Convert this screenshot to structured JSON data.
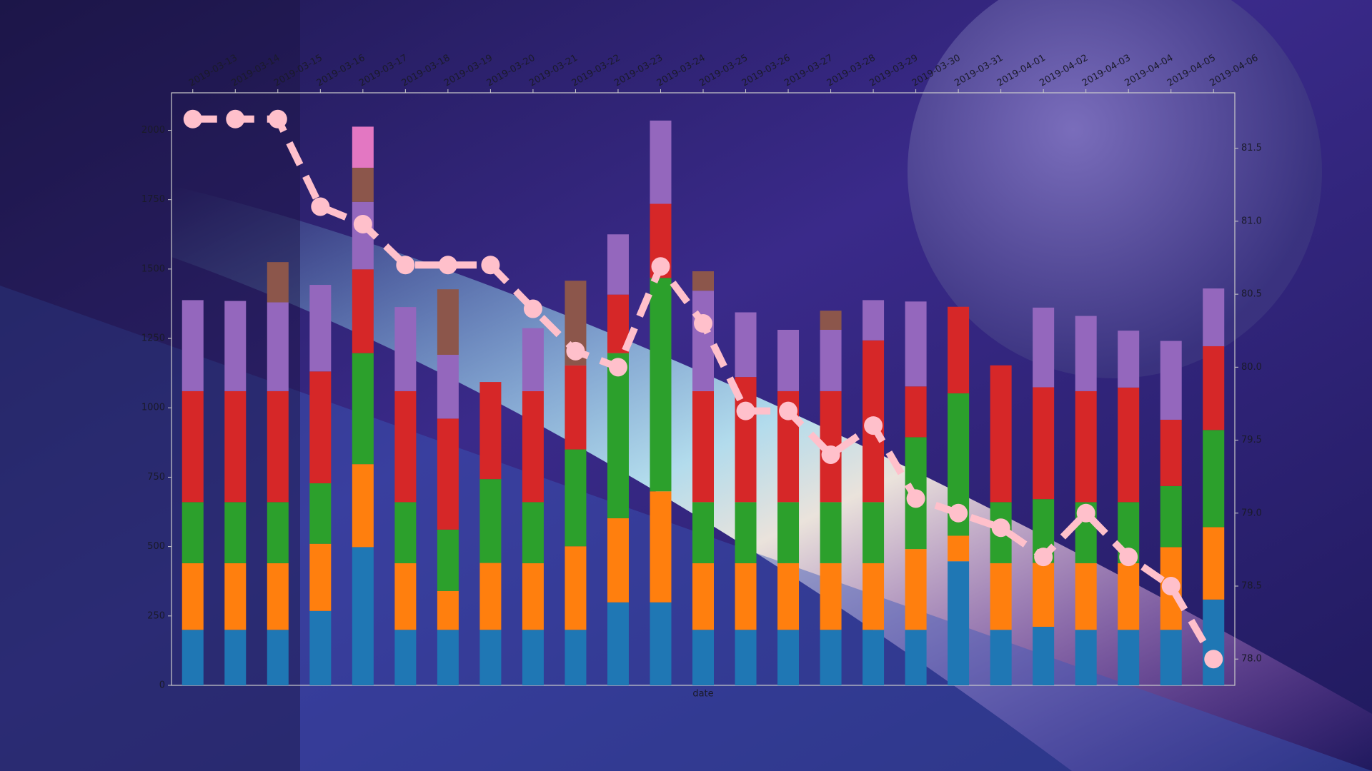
{
  "chart_data": {
    "type": "bar",
    "stacked": true,
    "x_label": "date",
    "categories": [
      "2019-03-13",
      "2019-03-14",
      "2019-03-15",
      "2019-03-16",
      "2019-03-17",
      "2019-03-18",
      "2019-03-19",
      "2019-03-20",
      "2019-03-21",
      "2019-03-22",
      "2019-03-23",
      "2019-03-24",
      "2019-03-25",
      "2019-03-26",
      "2019-03-27",
      "2019-03-28",
      "2019-03-29",
      "2019-03-30",
      "2019-03-31",
      "2019-04-01",
      "2019-04-02",
      "2019-04-03",
      "2019-04-04",
      "2019-04-05",
      "2019-04-06"
    ],
    "series": [
      {
        "color": "#1f77b4",
        "values": [
          200,
          200,
          200,
          268,
          498,
          200,
          200,
          200,
          200,
          200,
          299,
          299,
          200,
          200,
          200,
          200,
          200,
          200,
          447,
          200,
          211,
          200,
          200,
          200,
          309
        ]
      },
      {
        "color": "#ff7f0e",
        "values": [
          240,
          240,
          240,
          242,
          299,
          240,
          140,
          241,
          240,
          301,
          303,
          400,
          240,
          240,
          240,
          240,
          240,
          291,
          92,
          240,
          230,
          240,
          240,
          298,
          261
        ]
      },
      {
        "color": "#2ca02c",
        "values": [
          220,
          220,
          220,
          218,
          400,
          220,
          221,
          302,
          220,
          349,
          595,
          769,
          220,
          220,
          220,
          220,
          220,
          403,
          513,
          220,
          230,
          220,
          220,
          220,
          350
        ]
      },
      {
        "color": "#d62728",
        "values": [
          400,
          400,
          400,
          403,
          302,
          400,
          400,
          350,
          400,
          303,
          211,
          267,
          400,
          451,
          400,
          400,
          583,
          183,
          312,
          493,
          403,
          400,
          413,
          239,
          302
        ]
      },
      {
        "color": "#9467bd",
        "values": [
          328,
          325,
          320,
          312,
          243,
          303,
          230,
          0,
          227,
          0,
          217,
          300,
          362,
          233,
          221,
          221,
          145,
          306,
          0,
          0,
          287,
          271,
          205,
          284,
          208
        ]
      },
      {
        "color": "#8c564b",
        "values": [
          0,
          0,
          145,
          0,
          123,
          0,
          236,
          0,
          0,
          305,
          0,
          0,
          70,
          0,
          0,
          69,
          0,
          0,
          0,
          0,
          0,
          0,
          0,
          0,
          0
        ]
      },
      {
        "color": "#e377c2",
        "values": [
          0,
          0,
          0,
          0,
          148,
          0,
          0,
          0,
          0,
          0,
          0,
          0,
          0,
          0,
          0,
          0,
          0,
          0,
          0,
          0,
          0,
          0,
          0,
          0,
          0
        ]
      },
      {
        "type": "line",
        "axis": "y2",
        "color": "#ffc0cb",
        "values": [
          81.7,
          81.7,
          81.7,
          81.1,
          80.98,
          80.7,
          80.7,
          80.7,
          80.4,
          80.11,
          80.0,
          80.69,
          80.3,
          79.7,
          79.7,
          79.4,
          79.6,
          79.1,
          79.0,
          78.9,
          78.7,
          79.0,
          78.7,
          78.5,
          78.0
        ]
      }
    ],
    "ylim": [
      0,
      2135
    ],
    "yticks": [
      0,
      250,
      500,
      750,
      1000,
      1250,
      1500,
      1750,
      2000
    ],
    "y2lim": [
      77.82,
      81.88
    ],
    "y2ticks": [
      {
        "value": 78,
        "label": "78.0"
      },
      78.5,
      {
        "value": 79,
        "label": "79.0"
      },
      79.5,
      {
        "value": 80,
        "label": "80.0"
      },
      80.5,
      {
        "value": 81,
        "label": "81.0"
      },
      81.5
    ]
  }
}
